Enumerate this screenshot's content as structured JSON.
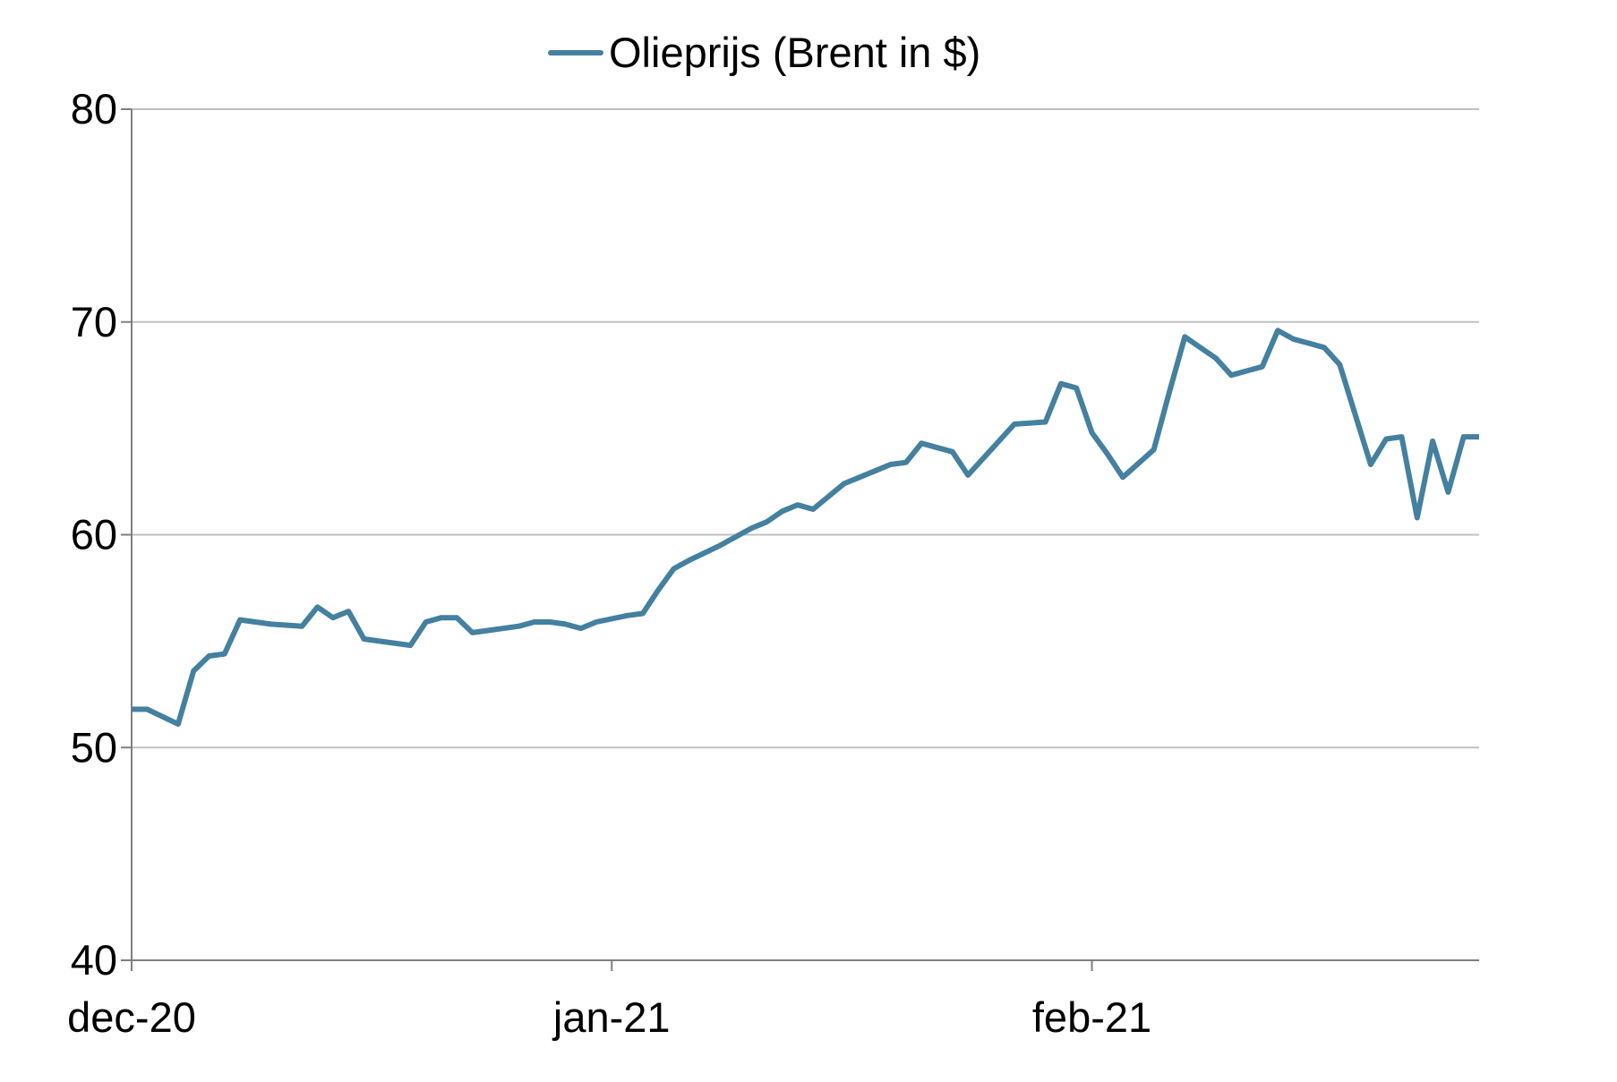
{
  "chart_data": {
    "type": "line",
    "title": "",
    "xlabel": "",
    "ylabel": "",
    "ylim": [
      40,
      80
    ],
    "yticks": [
      "40",
      "50",
      "60",
      "70",
      "80"
    ],
    "grid": "horizontal",
    "legend_position": "top-center",
    "x_tick_labels": [
      {
        "date": "2020-12-01",
        "label": "dec-20"
      },
      {
        "date": "2021-01-01",
        "label": "jan-21"
      },
      {
        "date": "2021-02-01",
        "label": "feb-21"
      }
    ],
    "x_range": [
      "2020-12-01",
      "2021-02-26"
    ],
    "series": [
      {
        "name": "Olieprijs (Brent in $)",
        "color": "#44809F",
        "x": [
          "2020-12-01",
          "2020-12-02",
          "2020-12-04",
          "2020-12-05",
          "2020-12-06",
          "2020-12-07",
          "2020-12-08",
          "2020-12-09",
          "2020-12-10",
          "2020-12-12",
          "2020-12-13",
          "2020-12-14",
          "2020-12-15",
          "2020-12-16",
          "2020-12-17",
          "2020-12-19",
          "2020-12-20",
          "2020-12-21",
          "2020-12-22",
          "2020-12-23",
          "2020-12-24",
          "2020-12-26",
          "2020-12-27",
          "2020-12-28",
          "2020-12-29",
          "2020-12-30",
          "2020-12-31",
          "2021-01-02",
          "2021-01-03",
          "2021-01-04",
          "2021-01-05",
          "2021-01-06",
          "2021-01-08",
          "2021-01-09",
          "2021-01-10",
          "2021-01-11",
          "2021-01-12",
          "2021-01-13",
          "2021-01-14",
          "2021-01-16",
          "2021-01-17",
          "2021-01-18",
          "2021-01-19",
          "2021-01-20",
          "2021-01-21",
          "2021-01-23",
          "2021-01-24",
          "2021-01-25",
          "2021-01-26",
          "2021-01-27",
          "2021-01-29",
          "2021-01-30",
          "2021-01-31",
          "2021-02-01",
          "2021-02-02",
          "2021-02-03",
          "2021-02-05",
          "2021-02-06",
          "2021-02-07",
          "2021-02-08",
          "2021-02-09",
          "2021-02-10",
          "2021-02-12",
          "2021-02-13",
          "2021-02-14",
          "2021-02-15",
          "2021-02-16",
          "2021-02-17",
          "2021-02-19",
          "2021-02-20",
          "2021-02-21",
          "2021-02-22",
          "2021-02-23",
          "2021-02-24",
          "2021-02-25",
          "2021-02-26"
        ],
        "y": [
          51.8,
          51.8,
          51.1,
          53.6,
          54.3,
          54.4,
          56.0,
          55.9,
          55.8,
          55.7,
          56.6,
          56.1,
          56.4,
          55.1,
          55.0,
          54.8,
          55.9,
          56.1,
          56.1,
          55.4,
          55.5,
          55.7,
          55.9,
          55.9,
          55.8,
          55.6,
          55.9,
          56.2,
          56.3,
          57.4,
          58.4,
          58.8,
          59.5,
          59.9,
          60.3,
          60.6,
          61.1,
          61.4,
          61.2,
          62.4,
          62.7,
          63.0,
          63.3,
          63.4,
          64.3,
          63.9,
          62.8,
          63.6,
          64.4,
          65.2,
          65.3,
          67.1,
          66.9,
          64.8,
          63.8,
          62.7,
          64.0,
          66.7,
          69.3,
          68.8,
          68.3,
          67.5,
          67.9,
          69.6,
          69.2,
          69.0,
          68.8,
          68.0,
          63.3,
          64.5,
          64.6,
          60.8,
          64.4,
          62.0,
          64.6,
          64.6
        ]
      }
    ]
  },
  "legend": {
    "label": "Olieprijs (Brent in $)"
  }
}
